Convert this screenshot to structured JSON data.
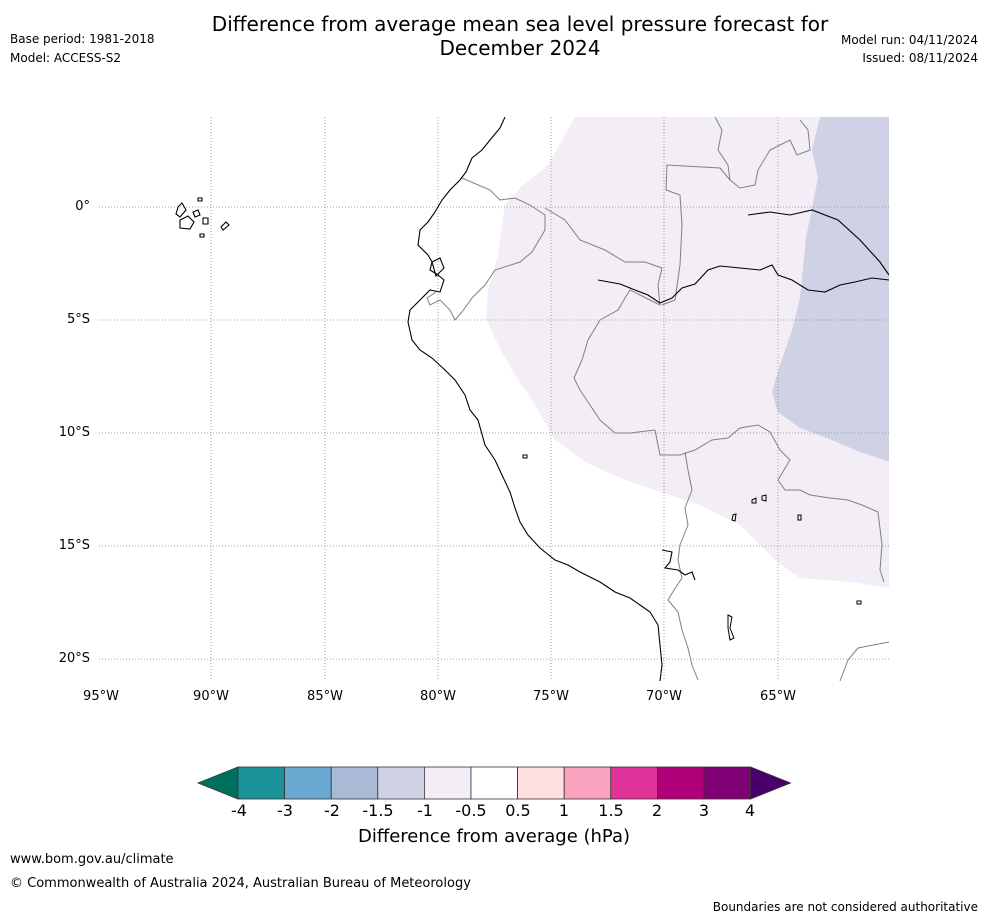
{
  "header": {
    "base_period": "Base period: 1981-2018",
    "model": "Model: ACCESS-S2",
    "title_line1": "Difference from average mean sea level pressure forecast for",
    "title_line2": "December 2024",
    "model_run": "Model run: 04/11/2024",
    "issued": "Issued: 08/11/2024"
  },
  "map": {
    "lon_ticks": [
      "95°W",
      "90°W",
      "85°W",
      "80°W",
      "75°W",
      "70°W",
      "65°W"
    ],
    "lat_ticks": [
      "0°",
      "5°S",
      "10°S",
      "15°S",
      "20°S"
    ],
    "lon_values": [
      -95,
      -90,
      -85,
      -80,
      -75,
      -70,
      -65
    ],
    "lat_values": [
      0,
      -5,
      -10,
      -15,
      -20
    ],
    "lon_range": [
      -95,
      -60
    ],
    "lat_range": [
      -21,
      4
    ],
    "gridlines": true,
    "colors": {
      "light_band": "#f3edf6",
      "medium_band": "#cfd1e5",
      "coastline": "#000000",
      "borders": "#808080",
      "grid": "#888888"
    }
  },
  "colorbar": {
    "tick_labels": [
      "-4",
      "-3",
      "-2",
      "-1.5",
      "-1",
      "-0.5",
      "0.5",
      "1",
      "1.5",
      "2",
      "3",
      "4"
    ],
    "colors": [
      "#00705e",
      "#1a9499",
      "#6aaad2",
      "#a8bad5",
      "#cfd1e5",
      "#f3edf6",
      "#ffffff",
      "#fee0e0",
      "#f9a3bf",
      "#df3399",
      "#af007a",
      "#800075",
      "#4a006a"
    ],
    "label": "Difference from average (hPa)"
  },
  "footer": {
    "website": "www.bom.gov.au/climate",
    "copyright": "© Commonwealth of Australia 2024, Australian Bureau of Meteorology",
    "disclaimer": "Boundaries are not considered authoritative"
  }
}
